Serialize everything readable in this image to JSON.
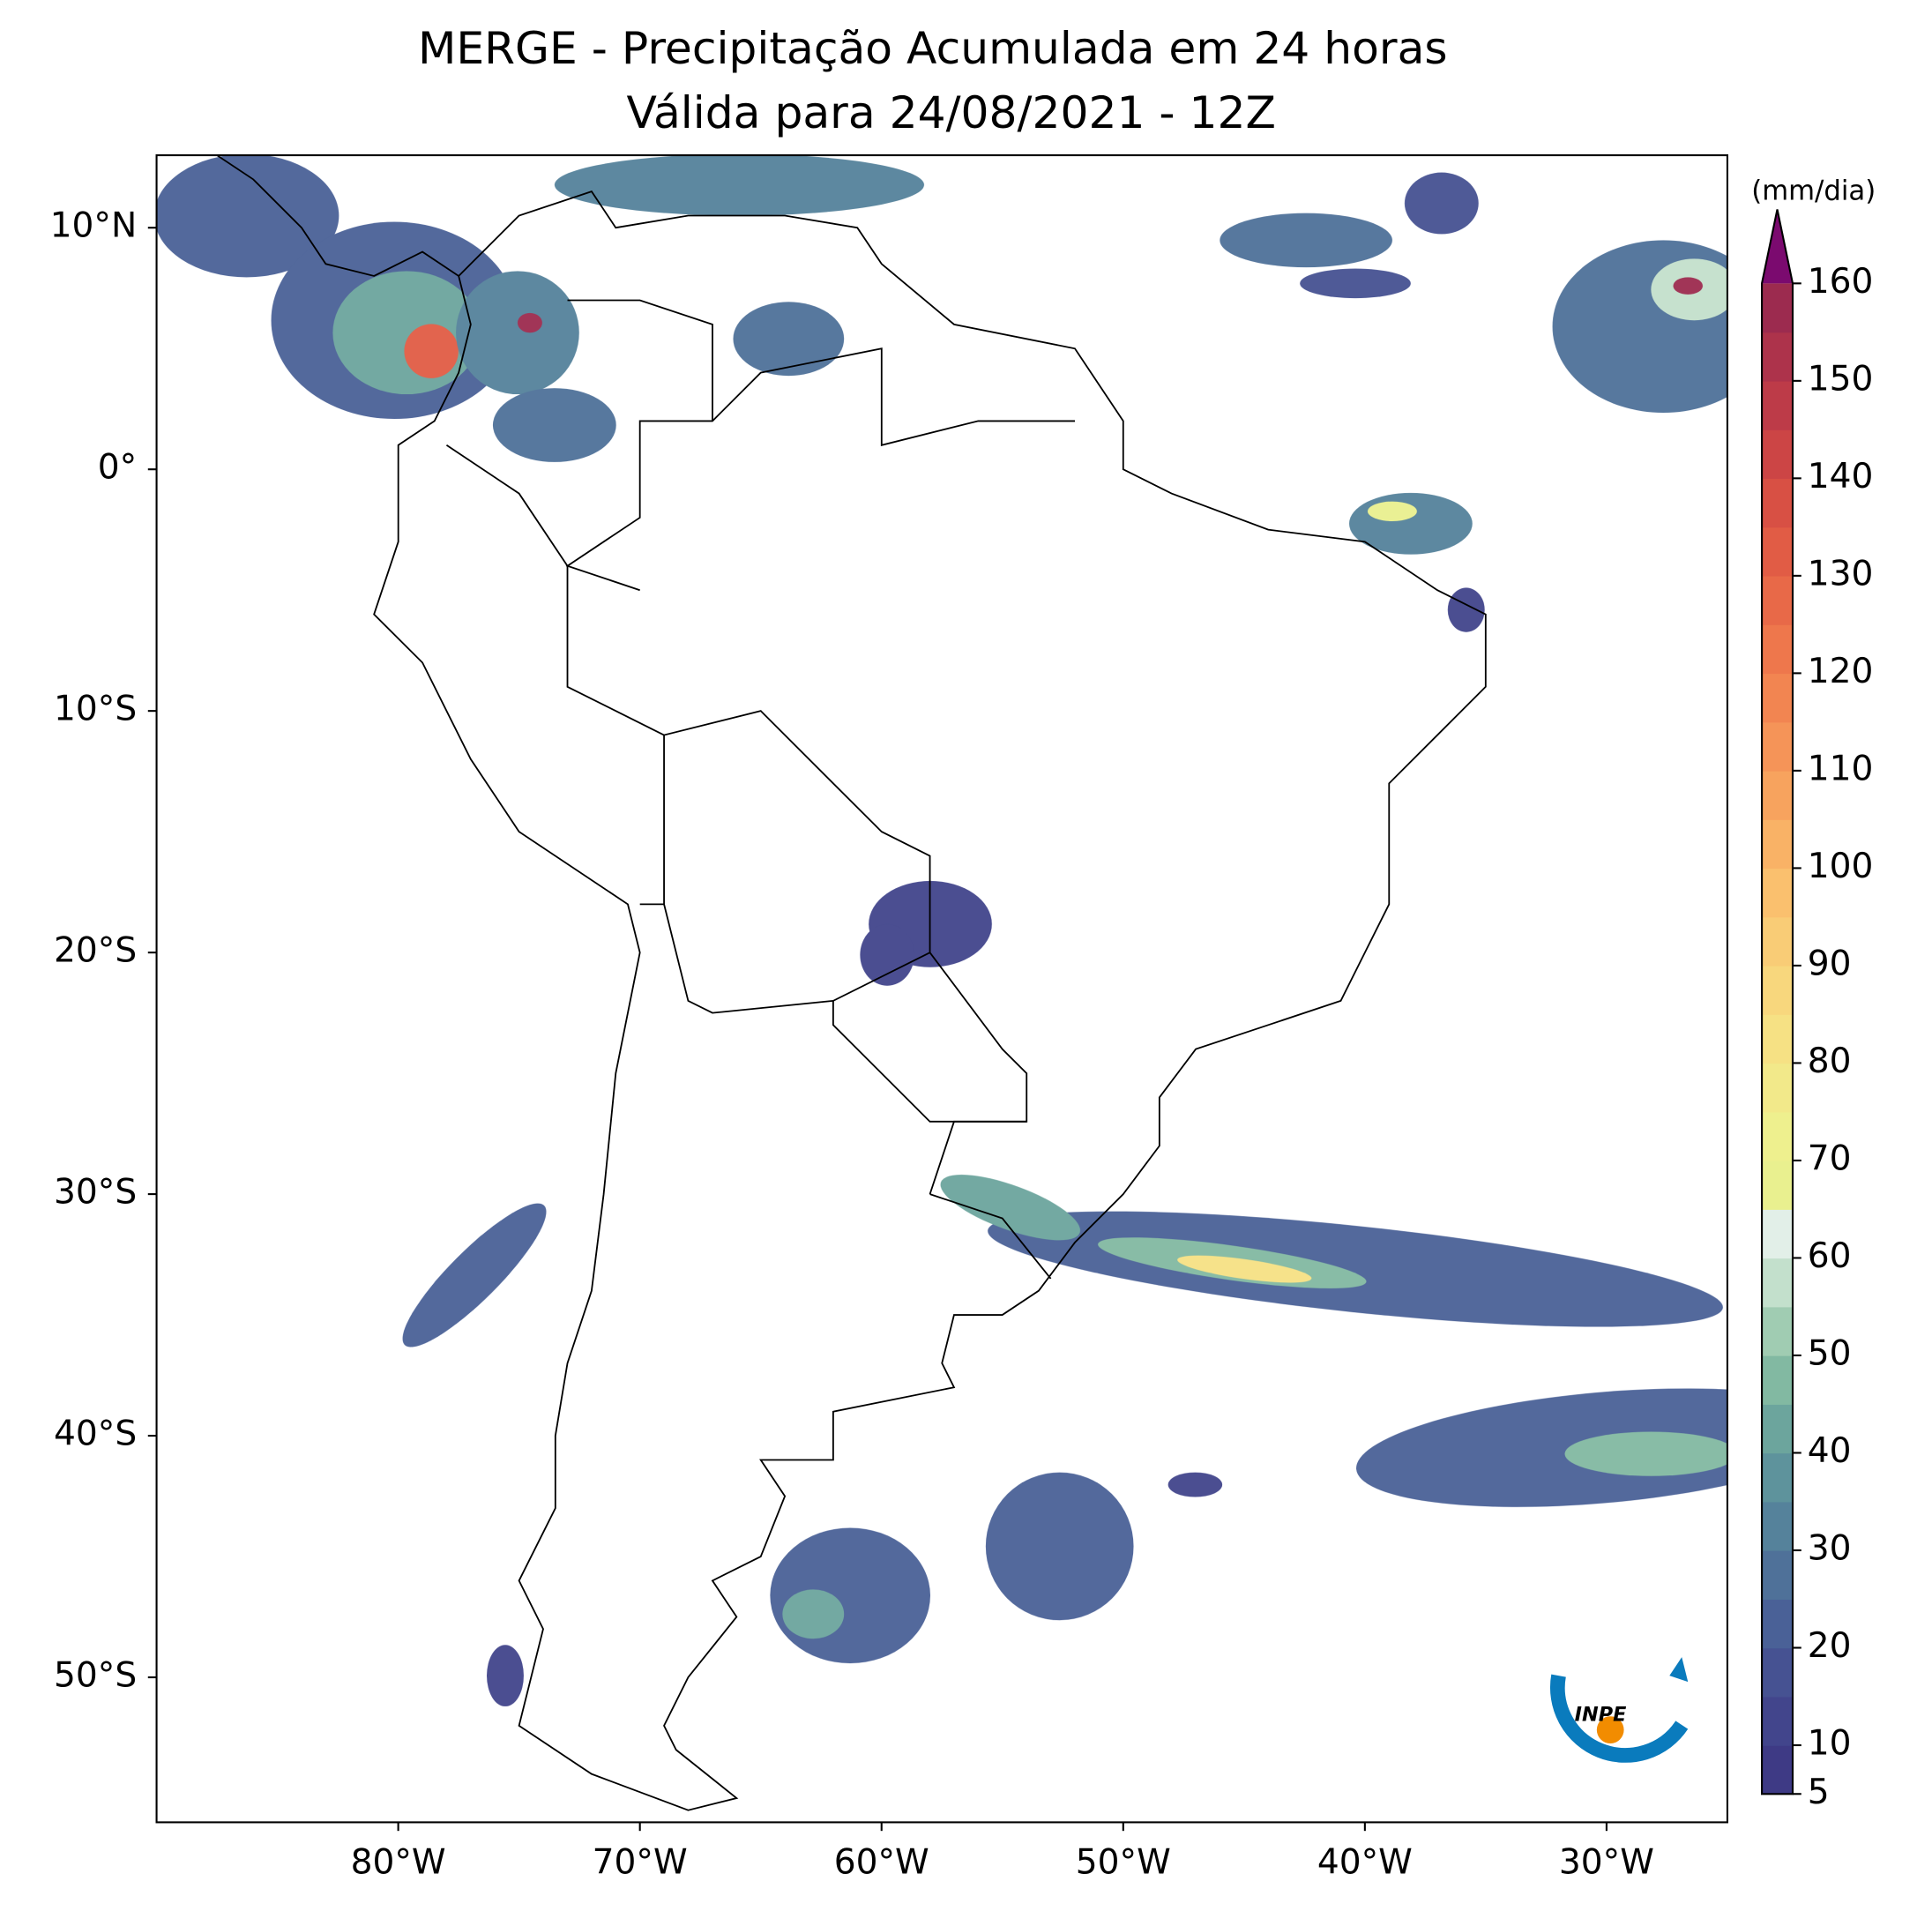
{
  "map": {
    "title": [
      "MERGE - Precipitação Acumulada em 24 horas",
      "Válida para 24/08/2021 - 12Z"
    ],
    "xlim": [
      -90,
      -25
    ],
    "ylim": [
      -56,
      13
    ],
    "xticks": [
      {
        "value": -80,
        "label": "80°W"
      },
      {
        "value": -70,
        "label": "70°W"
      },
      {
        "value": -60,
        "label": "60°W"
      },
      {
        "value": -50,
        "label": "50°W"
      },
      {
        "value": -40,
        "label": "40°W"
      },
      {
        "value": -30,
        "label": "30°W"
      }
    ],
    "yticks": [
      {
        "value": 10,
        "label": "10°N"
      },
      {
        "value": 0,
        "label": "0°"
      },
      {
        "value": -10,
        "label": "10°S"
      },
      {
        "value": -20,
        "label": "20°S"
      },
      {
        "value": -30,
        "label": "30°S"
      },
      {
        "value": -40,
        "label": "40°S"
      },
      {
        "value": -50,
        "label": "50°S"
      }
    ],
    "colorbar": {
      "label": "(mm/dia)",
      "lim": [
        5,
        160
      ],
      "ticks": [
        5,
        10,
        20,
        30,
        40,
        50,
        60,
        70,
        80,
        90,
        100,
        110,
        120,
        130,
        140,
        150,
        160
      ],
      "colors": [
        "#3e3a85",
        "#42458c",
        "#465292",
        "#4a6197",
        "#4f7199",
        "#55829b",
        "#5e939c",
        "#6ca59d",
        "#82b9a2",
        "#a0ccb2",
        "#c3e0cc",
        "#e2efe8",
        "#e9f08f",
        "#eef08e",
        "#f2e98a",
        "#f6e184",
        "#f8d77d",
        "#f9cc76",
        "#fac06e",
        "#f9b266",
        "#f7a35e",
        "#f59458",
        "#f28551",
        "#ee774c",
        "#e86948",
        "#e15c45",
        "#d85044",
        "#cc4545",
        "#bd3b48",
        "#ad334b",
        "#9c2b4f"
      ],
      "extend_color": "#7b0a6f"
    },
    "logo": "INPE"
  }
}
